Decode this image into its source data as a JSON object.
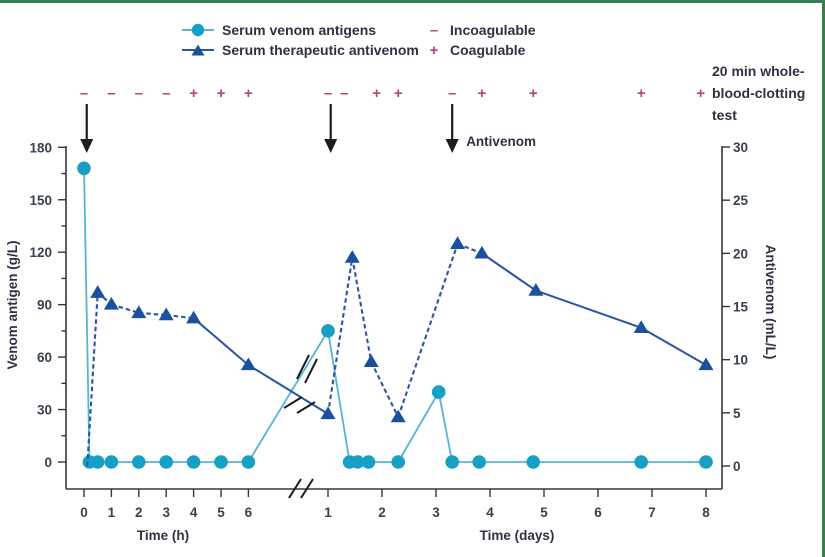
{
  "figure": {
    "border_color": "#377f4f",
    "background": "#ffffff",
    "text_color": "#2d3340"
  },
  "legend": {
    "series": [
      {
        "label": "Serum venom antigens",
        "marker": "circle"
      },
      {
        "label": "Serum therapeutic antivenom",
        "marker": "triangle"
      }
    ],
    "coagulation": [
      {
        "symbol": "–",
        "label": "Incoagulable"
      },
      {
        "symbol": "+",
        "label": "Coagulable"
      }
    ]
  },
  "clotting_test_label": "20 min whole-blood-clotting test",
  "annotations": {
    "antivenom_arrow_label": "Antivenom"
  },
  "chart_data": {
    "type": "line",
    "x_axis": {
      "sections": [
        {
          "id": "h",
          "label": "Time (h)",
          "ticks": [
            0,
            1,
            2,
            3,
            4,
            5,
            6
          ]
        },
        {
          "id": "d",
          "label": "Time (days)",
          "ticks": [
            1,
            2,
            3,
            4,
            5,
            6,
            7,
            8
          ]
        }
      ],
      "axis_break": true
    },
    "y_left": {
      "label": "Venom antigen (g/L)",
      "ticks": [
        0,
        30,
        60,
        90,
        120,
        150,
        180
      ],
      "range": [
        0,
        180
      ]
    },
    "y_right": {
      "label": "Antivenom (mL/L)",
      "ticks": [
        0,
        5,
        10,
        15,
        20,
        25,
        30
      ],
      "range": [
        0,
        30
      ]
    },
    "series": [
      {
        "name": "Serum venom antigens",
        "marker": "circle",
        "axis": "left",
        "marker_color": "#189fc6",
        "line_color": "#56b5d4",
        "points": [
          {
            "s": "h",
            "t": 0,
            "v": 168
          },
          {
            "s": "h",
            "t": 0.2,
            "v": 0
          },
          {
            "s": "h",
            "t": 0.5,
            "v": 0
          },
          {
            "s": "h",
            "t": 1,
            "v": 0
          },
          {
            "s": "h",
            "t": 2,
            "v": 0
          },
          {
            "s": "h",
            "t": 3,
            "v": 0
          },
          {
            "s": "h",
            "t": 4,
            "v": 0
          },
          {
            "s": "h",
            "t": 5,
            "v": 0
          },
          {
            "s": "h",
            "t": 6,
            "v": 0
          },
          {
            "s": "d",
            "t": 1,
            "v": 75
          },
          {
            "s": "d",
            "t": 1.4,
            "v": 0
          },
          {
            "s": "d",
            "t": 1.55,
            "v": 0
          },
          {
            "s": "d",
            "t": 1.75,
            "v": 0
          },
          {
            "s": "d",
            "t": 2.3,
            "v": 0
          },
          {
            "s": "d",
            "t": 3.05,
            "v": 40
          },
          {
            "s": "d",
            "t": 3.3,
            "v": 0
          },
          {
            "s": "d",
            "t": 3.8,
            "v": 0
          },
          {
            "s": "d",
            "t": 4.8,
            "v": 0
          },
          {
            "s": "d",
            "t": 6.8,
            "v": 0
          },
          {
            "s": "d",
            "t": 8,
            "v": 0
          }
        ]
      },
      {
        "name": "Serum therapeutic antivenom",
        "marker": "triangle",
        "axis": "right",
        "marker_color": "#1c4f9e",
        "line_color": "#2b56a5",
        "points": [
          {
            "s": "h",
            "t": 0.12,
            "v": 0,
            "show_marker": false
          },
          {
            "s": "h",
            "t": 0.5,
            "v": 16.3,
            "dash": true
          },
          {
            "s": "h",
            "t": 1,
            "v": 15.2,
            "dash": true
          },
          {
            "s": "h",
            "t": 2,
            "v": 14.4,
            "dash": true
          },
          {
            "s": "h",
            "t": 3,
            "v": 14.2,
            "dash": true
          },
          {
            "s": "h",
            "t": 4,
            "v": 13.9,
            "dash": true
          },
          {
            "s": "h",
            "t": 6,
            "v": 9.5
          },
          {
            "s": "d",
            "t": 1,
            "v": 4.9
          },
          {
            "s": "d",
            "t": 1.45,
            "v": 19.6,
            "dash": true
          },
          {
            "s": "d",
            "t": 1.8,
            "v": 9.8,
            "dash": true
          },
          {
            "s": "d",
            "t": 2.3,
            "v": 4.6,
            "dash": true
          },
          {
            "s": "d",
            "t": 3.4,
            "v": 20.9,
            "dash": true
          },
          {
            "s": "d",
            "t": 3.85,
            "v": 20,
            "dash": true
          },
          {
            "s": "d",
            "t": 4.85,
            "v": 16.5
          },
          {
            "s": "d",
            "t": 6.8,
            "v": 13
          },
          {
            "s": "d",
            "t": 8,
            "v": 9.5
          }
        ]
      }
    ],
    "clotting_tests": {
      "symbol_color": "#b04a5e",
      "results": [
        {
          "s": "h",
          "t": 0,
          "sign": "-"
        },
        {
          "s": "h",
          "t": 1,
          "sign": "-"
        },
        {
          "s": "h",
          "t": 2,
          "sign": "-"
        },
        {
          "s": "h",
          "t": 3,
          "sign": "-"
        },
        {
          "s": "h",
          "t": 4,
          "sign": "+"
        },
        {
          "s": "h",
          "t": 5,
          "sign": "+"
        },
        {
          "s": "h",
          "t": 6,
          "sign": "+"
        },
        {
          "s": "d",
          "t": 1,
          "sign": "-"
        },
        {
          "s": "d",
          "t": 1.3,
          "sign": "-"
        },
        {
          "s": "d",
          "t": 1.9,
          "sign": "+"
        },
        {
          "s": "d",
          "t": 2.3,
          "sign": "+"
        },
        {
          "s": "d",
          "t": 3.3,
          "sign": "-"
        },
        {
          "s": "d",
          "t": 3.85,
          "sign": "+"
        },
        {
          "s": "d",
          "t": 4.8,
          "sign": "+"
        },
        {
          "s": "d",
          "t": 6.8,
          "sign": "+"
        },
        {
          "s": "d",
          "t": 7.9,
          "sign": "+"
        }
      ]
    },
    "antivenom_doses": [
      {
        "s": "h",
        "t": 0.1
      },
      {
        "s": "d",
        "t": 1.05
      },
      {
        "s": "d",
        "t": 3.3,
        "labelled": true
      }
    ]
  }
}
